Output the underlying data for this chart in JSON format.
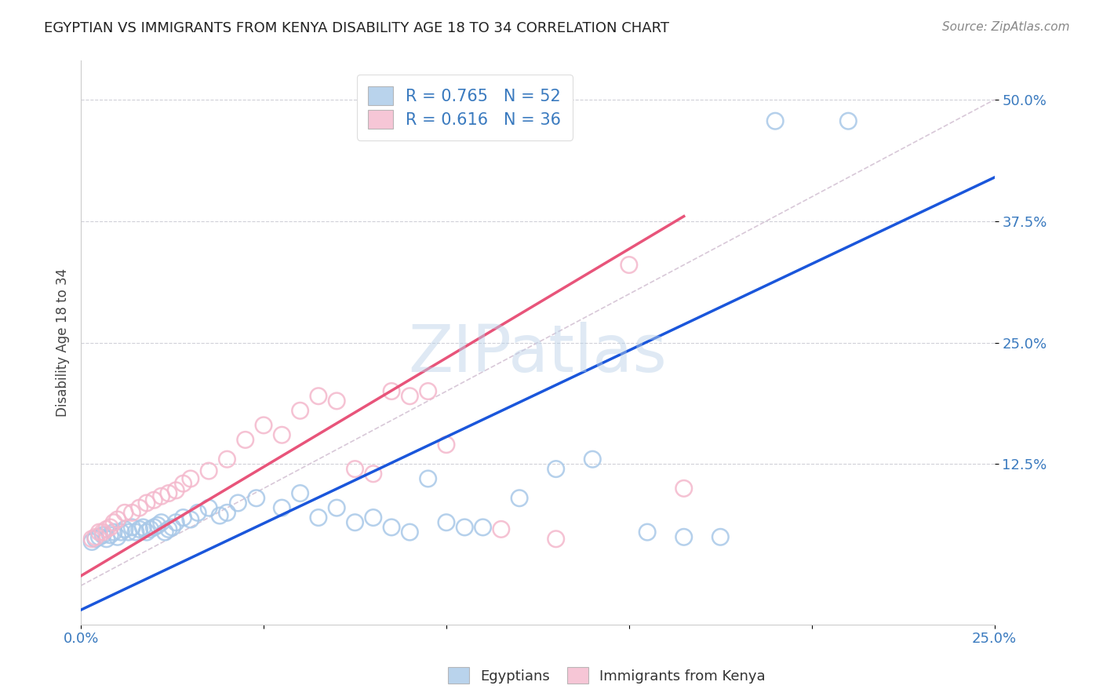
{
  "title": "EGYPTIAN VS IMMIGRANTS FROM KENYA DISABILITY AGE 18 TO 34 CORRELATION CHART",
  "source": "Source: ZipAtlas.com",
  "ylabel_ticks": [
    "12.5%",
    "25.0%",
    "37.5%",
    "50.0%"
  ],
  "ylabel_label": "Disability Age 18 to 34",
  "xlim": [
    0.0,
    0.25
  ],
  "ylim": [
    -0.04,
    0.54
  ],
  "yticks": [
    0.125,
    0.25,
    0.375,
    0.5
  ],
  "xticks": [
    0.0,
    0.05,
    0.1,
    0.15,
    0.2,
    0.25
  ],
  "watermark": "ZIPatlas",
  "blue_color": "#a8c8e8",
  "pink_color": "#f4b8cc",
  "line_blue": "#1a56db",
  "line_pink": "#e8547a",
  "diag_color": "#d8c8d8",
  "blue_scatter_x": [
    0.003,
    0.004,
    0.005,
    0.006,
    0.007,
    0.008,
    0.009,
    0.01,
    0.011,
    0.012,
    0.013,
    0.014,
    0.015,
    0.016,
    0.017,
    0.018,
    0.019,
    0.02,
    0.021,
    0.022,
    0.023,
    0.024,
    0.025,
    0.026,
    0.028,
    0.03,
    0.032,
    0.035,
    0.038,
    0.04,
    0.043,
    0.048,
    0.055,
    0.06,
    0.065,
    0.07,
    0.075,
    0.08,
    0.085,
    0.09,
    0.095,
    0.1,
    0.105,
    0.11,
    0.12,
    0.13,
    0.14,
    0.155,
    0.165,
    0.175,
    0.19,
    0.21
  ],
  "blue_scatter_y": [
    0.045,
    0.048,
    0.05,
    0.052,
    0.048,
    0.052,
    0.055,
    0.05,
    0.055,
    0.058,
    0.055,
    0.06,
    0.055,
    0.058,
    0.06,
    0.055,
    0.058,
    0.06,
    0.062,
    0.065,
    0.055,
    0.058,
    0.06,
    0.065,
    0.07,
    0.068,
    0.075,
    0.08,
    0.072,
    0.075,
    0.085,
    0.09,
    0.08,
    0.095,
    0.07,
    0.08,
    0.065,
    0.07,
    0.06,
    0.055,
    0.11,
    0.065,
    0.06,
    0.06,
    0.09,
    0.12,
    0.13,
    0.055,
    0.05,
    0.05,
    0.478,
    0.478
  ],
  "pink_scatter_x": [
    0.003,
    0.004,
    0.005,
    0.006,
    0.007,
    0.008,
    0.009,
    0.01,
    0.012,
    0.014,
    0.016,
    0.018,
    0.02,
    0.022,
    0.024,
    0.026,
    0.028,
    0.03,
    0.035,
    0.04,
    0.045,
    0.05,
    0.055,
    0.06,
    0.065,
    0.07,
    0.075,
    0.08,
    0.085,
    0.09,
    0.095,
    0.1,
    0.115,
    0.13,
    0.15,
    0.165
  ],
  "pink_scatter_y": [
    0.048,
    0.05,
    0.055,
    0.055,
    0.058,
    0.06,
    0.065,
    0.068,
    0.075,
    0.075,
    0.08,
    0.085,
    0.088,
    0.092,
    0.095,
    0.098,
    0.105,
    0.11,
    0.118,
    0.13,
    0.15,
    0.165,
    0.155,
    0.18,
    0.195,
    0.19,
    0.12,
    0.115,
    0.2,
    0.195,
    0.2,
    0.145,
    0.058,
    0.048,
    0.33,
    0.1
  ],
  "blue_line_x": [
    0.0,
    0.25
  ],
  "blue_line_y": [
    -0.025,
    0.42
  ],
  "pink_line_x": [
    0.0,
    0.165
  ],
  "pink_line_y": [
    0.01,
    0.38
  ],
  "diag_line_x": [
    0.0,
    0.25
  ],
  "diag_line_y": [
    0.0,
    0.5
  ]
}
